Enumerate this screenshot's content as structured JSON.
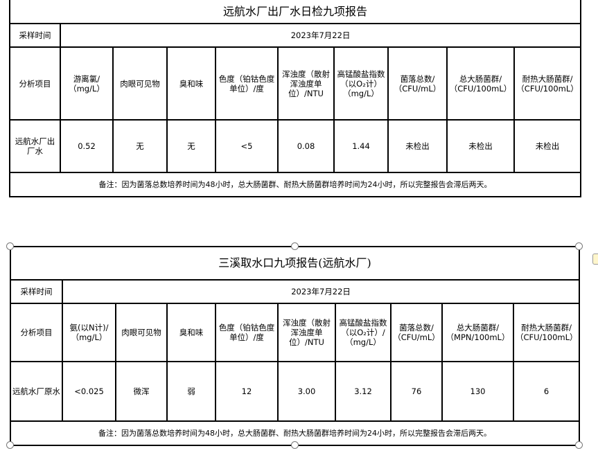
{
  "table1": {
    "title": "远航水厂出厂水日检九项报告",
    "sampling_label": "采样时间",
    "sampling_date": "2023年7月22日",
    "item_label": "分析项目",
    "headers": [
      "游离氯/（mg/L）",
      "肉眼可见物",
      "臭和味",
      "色度（铂钴色度单位）/度",
      "浑浊度（散射浑浊度单位）/NTU",
      "高锰酸盐指数（以O₂计）（mg/L）",
      "菌落总数/（CFU/mL）",
      "总大肠菌群/（CFU/100mL）",
      "耐热大肠菌群/（CFU/100mL）"
    ],
    "sample_name": "远航水厂出厂水",
    "values": [
      "0.52",
      "无",
      "无",
      "<5",
      "0.08",
      "1.44",
      "未检出",
      "未检出",
      "未检出"
    ],
    "note": "备注：因为菌落总数培养时间为48小时，总大肠菌群、耐热大肠菌群培养时间为24小时，所以完整报告会滞后两天。"
  },
  "table2": {
    "title": "三溪取水口九项报告(远航水厂)",
    "sampling_label": "采样时间",
    "sampling_date": "2023年7月22日",
    "item_label": "分析项目",
    "headers": [
      "氨(以N计)/（mg/L）",
      "肉眼可见物",
      "臭和味",
      "色度（铂钴色度单位）/度",
      "浑浊度（散射浑浊度单位）/NTU",
      "高锰酸盐指数（以O₂计）/（mg/L）",
      "菌落总数/（CFU/mL）",
      "总大肠菌群/（MPN/100mL）",
      "耐热大肠菌群/（CFU/100mL）"
    ],
    "sample_name": "远航水厂原水",
    "values": [
      "<0.025",
      "微浑",
      "弱",
      "12",
      "3.00",
      "3.12",
      "76",
      "130",
      "6"
    ],
    "note": "备注：因为菌落总数培养时间为48小时，总大肠菌群、耐热大肠菌群培养时间为24小时，所以完整报告会滞后两天。"
  }
}
